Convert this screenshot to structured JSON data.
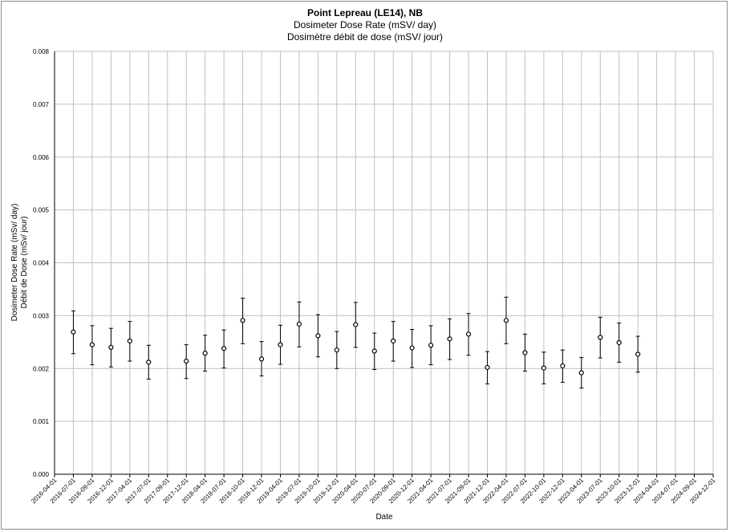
{
  "chart_data": {
    "type": "scatter",
    "title": "Point Lepreau (LE14), NB",
    "subtitle_en": "Dosimeter Dose Rate (mSV/ day)",
    "subtitle_fr": "Dosimètre débit de dose (mSV/ jour)",
    "xlabel": "Date",
    "ylabel_en": "Dosimeter Dose Rate (mSv/ day)",
    "ylabel_fr": "Débit de Dose (mSv/ jour)",
    "ylim": [
      0,
      0.008
    ],
    "y_ticks": [
      "0.000",
      "0.001",
      "0.002",
      "0.003",
      "0.004",
      "0.005",
      "0.006",
      "0.007",
      "0.008"
    ],
    "x_ticks": [
      "2016-04-01",
      "2016-07-01",
      "2016-09-01",
      "2016-12-01",
      "2017-04-01",
      "2017-07-01",
      "2017-09-01",
      "2017-12-01",
      "2018-04-01",
      "2018-07-01",
      "2018-10-01",
      "2018-12-01",
      "2019-04-01",
      "2019-07-01",
      "2019-10-01",
      "2019-12-01",
      "2020-04-01",
      "2020-07-01",
      "2020-09-01",
      "2020-12-01",
      "2021-04-01",
      "2021-07-01",
      "2021-09-01",
      "2021-12-01",
      "2022-04-01",
      "2022-07-01",
      "2022-10-01",
      "2022-12-01",
      "2023-04-01",
      "2023-07-01",
      "2023-10-01",
      "2023-12-01",
      "2024-04-01",
      "2024-07-01",
      "2024-09-01",
      "2024-12-01"
    ],
    "grid": true,
    "legend": "none",
    "marker": "open-circle",
    "error_bars": true,
    "points": [
      {
        "x": "2016-07-01",
        "y": 0.00269,
        "err_low": 0.00228,
        "err_high": 0.00309
      },
      {
        "x": "2016-09-01",
        "y": 0.00245,
        "err_low": 0.00207,
        "err_high": 0.00281
      },
      {
        "x": "2016-12-01",
        "y": 0.0024,
        "err_low": 0.00203,
        "err_high": 0.00276
      },
      {
        "x": "2017-04-01",
        "y": 0.00252,
        "err_low": 0.00214,
        "err_high": 0.00289
      },
      {
        "x": "2017-07-01",
        "y": 0.00212,
        "err_low": 0.0018,
        "err_high": 0.00244
      },
      {
        "x": "2017-12-01",
        "y": 0.00214,
        "err_low": 0.00181,
        "err_high": 0.00245
      },
      {
        "x": "2018-04-01",
        "y": 0.00229,
        "err_low": 0.00195,
        "err_high": 0.00263
      },
      {
        "x": "2018-07-01",
        "y": 0.00238,
        "err_low": 0.00201,
        "err_high": 0.00273
      },
      {
        "x": "2018-10-01",
        "y": 0.00291,
        "err_low": 0.00247,
        "err_high": 0.00333
      },
      {
        "x": "2018-12-01",
        "y": 0.00218,
        "err_low": 0.00186,
        "err_high": 0.00251
      },
      {
        "x": "2019-04-01",
        "y": 0.00245,
        "err_low": 0.00208,
        "err_high": 0.00282
      },
      {
        "x": "2019-07-01",
        "y": 0.00284,
        "err_low": 0.00241,
        "err_high": 0.00326
      },
      {
        "x": "2019-10-01",
        "y": 0.00262,
        "err_low": 0.00222,
        "err_high": 0.00302
      },
      {
        "x": "2019-12-01",
        "y": 0.00235,
        "err_low": 0.002,
        "err_high": 0.0027
      },
      {
        "x": "2020-04-01",
        "y": 0.00283,
        "err_low": 0.0024,
        "err_high": 0.00325
      },
      {
        "x": "2020-07-01",
        "y": 0.00233,
        "err_low": 0.00198,
        "err_high": 0.00267
      },
      {
        "x": "2020-09-01",
        "y": 0.00252,
        "err_low": 0.00214,
        "err_high": 0.00289
      },
      {
        "x": "2020-12-01",
        "y": 0.00239,
        "err_low": 0.00202,
        "err_high": 0.00274
      },
      {
        "x": "2021-04-01",
        "y": 0.00244,
        "err_low": 0.00207,
        "err_high": 0.00281
      },
      {
        "x": "2021-07-01",
        "y": 0.00256,
        "err_low": 0.00217,
        "err_high": 0.00294
      },
      {
        "x": "2021-09-01",
        "y": 0.00265,
        "err_low": 0.00225,
        "err_high": 0.00304
      },
      {
        "x": "2021-12-01",
        "y": 0.00202,
        "err_low": 0.00171,
        "err_high": 0.00232
      },
      {
        "x": "2022-04-01",
        "y": 0.00291,
        "err_low": 0.00247,
        "err_high": 0.00335
      },
      {
        "x": "2022-07-01",
        "y": 0.0023,
        "err_low": 0.00195,
        "err_high": 0.00265
      },
      {
        "x": "2022-10-01",
        "y": 0.00201,
        "err_low": 0.00171,
        "err_high": 0.00231
      },
      {
        "x": "2022-12-01",
        "y": 0.00205,
        "err_low": 0.00174,
        "err_high": 0.00235
      },
      {
        "x": "2023-04-01",
        "y": 0.00192,
        "err_low": 0.00163,
        "err_high": 0.00221
      },
      {
        "x": "2023-07-01",
        "y": 0.00259,
        "err_low": 0.0022,
        "err_high": 0.00297
      },
      {
        "x": "2023-10-01",
        "y": 0.00249,
        "err_low": 0.00212,
        "err_high": 0.00286
      },
      {
        "x": "2023-12-01",
        "y": 0.00227,
        "err_low": 0.00193,
        "err_high": 0.00261
      }
    ],
    "colors": {
      "gridline": "#bfbfbf",
      "marker": "#000000",
      "frame": "#8c8c8c",
      "text": "#000000"
    }
  }
}
